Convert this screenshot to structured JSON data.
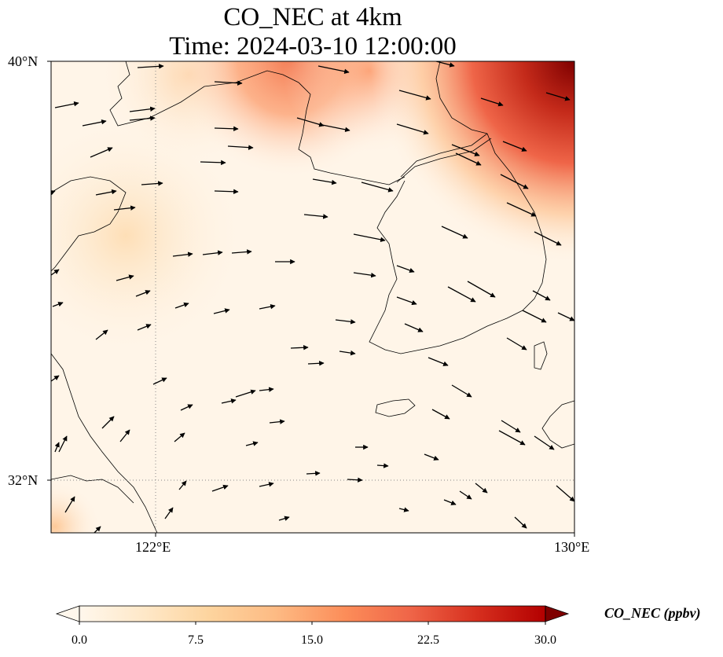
{
  "title_line1": "CO_NEC at 4km",
  "title_line2": "Time: 2024-03-10 12:00:00",
  "axes": {
    "lat_labels": [
      "40°N",
      "32°N"
    ],
    "lon_labels": [
      "122°E",
      "130°E"
    ],
    "lon_range": [
      120,
      130
    ],
    "lat_range": [
      31,
      40
    ],
    "gridlines": "dotted at 122°E and 32°N"
  },
  "colorbar": {
    "label": "CO_NEC (ppbv)",
    "ticks": [
      "0.0",
      "7.5",
      "15.0",
      "22.5",
      "30.0"
    ],
    "range": [
      0,
      30
    ],
    "colormap": "OrRd",
    "extend": "both"
  },
  "colors": {
    "low": "#fff7ec",
    "mid": "#fdbb84",
    "high": "#7f0000",
    "coastline": "#000000",
    "gridline": "#888888"
  },
  "chart_data": {
    "type": "heatmap",
    "variable": "CO_NEC",
    "units": "ppbv",
    "level": "4km",
    "time": "2024-03-10 12:00:00",
    "field_summary": [
      {
        "region": "northeast corner (~129-130°E, 39-40°N)",
        "approx_value": 28
      },
      {
        "region": "north edge (~124-126°E, 39.5-40°N)",
        "approx_value": 13
      },
      {
        "region": "western Bohai / land (~120-122°E, 36-37°N)",
        "approx_value": 3
      },
      {
        "region": "Yellow Sea and Korean peninsula",
        "approx_value": 1
      }
    ],
    "wind_vectors": "westerly to west-northwesterly flow across the domain"
  }
}
